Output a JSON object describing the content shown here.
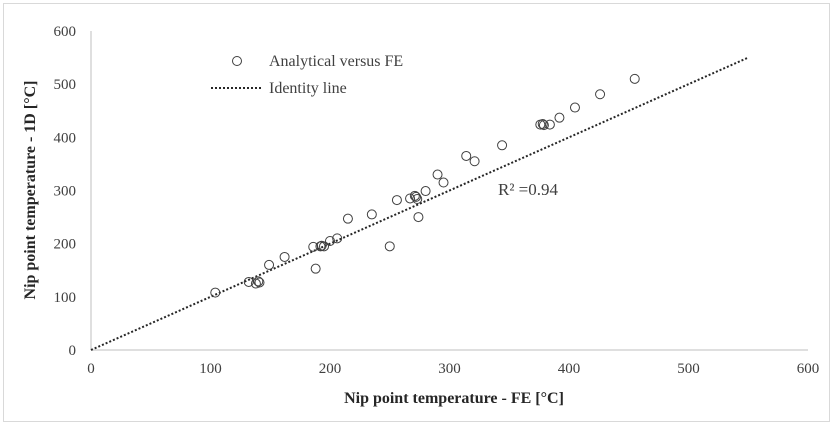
{
  "chart_data": {
    "type": "scatter",
    "title": "",
    "xlabel": "Nip point temperature - FE [°C]",
    "ylabel": "Nip point temperature - 1D [°C]",
    "xlim": [
      0,
      600
    ],
    "ylim": [
      0,
      600
    ],
    "xticks": [
      "0",
      "100",
      "200",
      "300",
      "400",
      "500",
      "600"
    ],
    "yticks": [
      "0",
      "100",
      "200",
      "300",
      "400",
      "500",
      "600"
    ],
    "grid": false,
    "legend_position": "top-left",
    "annotation": "R² =0.94",
    "series": [
      {
        "name": "Analytical versus FE",
        "marker": "open-circle",
        "color": "#404040",
        "points": [
          [
            104,
            108
          ],
          [
            132,
            128
          ],
          [
            138,
            125
          ],
          [
            140,
            129
          ],
          [
            141,
            127
          ],
          [
            149,
            160
          ],
          [
            162,
            175
          ],
          [
            186,
            194
          ],
          [
            188,
            153
          ],
          [
            192,
            195
          ],
          [
            193,
            196
          ],
          [
            195,
            195
          ],
          [
            200,
            205
          ],
          [
            206,
            210
          ],
          [
            215,
            247
          ],
          [
            235,
            255
          ],
          [
            250,
            195
          ],
          [
            256,
            282
          ],
          [
            267,
            285
          ],
          [
            271,
            290
          ],
          [
            272,
            288
          ],
          [
            273,
            284
          ],
          [
            274,
            250
          ],
          [
            280,
            299
          ],
          [
            290,
            330
          ],
          [
            295,
            315
          ],
          [
            314,
            365
          ],
          [
            321,
            355
          ],
          [
            344,
            385
          ],
          [
            376,
            424
          ],
          [
            378,
            425
          ],
          [
            379,
            423
          ],
          [
            384,
            424
          ],
          [
            392,
            437
          ],
          [
            405,
            456
          ],
          [
            426,
            481
          ],
          [
            455,
            510
          ]
        ]
      },
      {
        "name": "Identity line",
        "style": "dotted",
        "color": "#262626",
        "points": [
          [
            0,
            0
          ],
          [
            550,
            550
          ]
        ]
      }
    ]
  }
}
